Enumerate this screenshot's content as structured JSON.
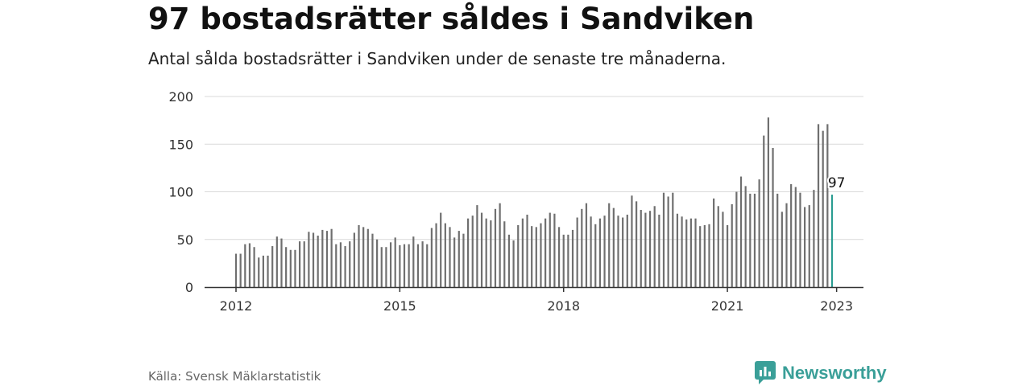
{
  "header": {
    "title": "97 bostadsrätter såldes i Sandviken",
    "subtitle": "Antal sålda bostadsrätter i Sandviken under de senaste tre månaderna."
  },
  "footer": {
    "source": "Källa: Svensk Mäklarstatistik",
    "brand": "Newsworthy"
  },
  "colors": {
    "bar": "#6f6f6f",
    "highlight": "#2a9d92",
    "grid": "#d9d9d9",
    "axis": "#333333",
    "brand": "#3a9f98"
  },
  "icons": {
    "brand": "newsworthy-logo-icon"
  },
  "chart_data": {
    "type": "bar",
    "title": "97 bostadsrätter såldes i Sandviken",
    "subtitle": "Antal sålda bostadsrätter i Sandviken under de senaste tre månaderna.",
    "xlabel": "",
    "ylabel": "",
    "ylim": [
      0,
      200
    ],
    "yticks": [
      0,
      50,
      100,
      150,
      200
    ],
    "xticks": [
      "2012",
      "2015",
      "2018",
      "2021",
      "2023"
    ],
    "xtick_months": [
      "2012-01",
      "2015-01",
      "2018-01",
      "2021-01",
      "2023-01"
    ],
    "grid": true,
    "start_month": "2012-01",
    "end_month": "2023-01",
    "values": [
      35,
      35,
      45,
      46,
      42,
      31,
      33,
      33,
      43,
      53,
      51,
      42,
      39,
      39,
      48,
      48,
      58,
      57,
      54,
      60,
      59,
      61,
      45,
      47,
      43,
      48,
      57,
      65,
      63,
      61,
      56,
      50,
      42,
      42,
      47,
      52,
      44,
      45,
      45,
      53,
      45,
      48,
      45,
      62,
      67,
      78,
      67,
      63,
      52,
      59,
      56,
      72,
      75,
      86,
      78,
      72,
      70,
      82,
      88,
      69,
      55,
      49,
      65,
      72,
      76,
      64,
      63,
      67,
      72,
      78,
      77,
      63,
      55,
      55,
      60,
      73,
      82,
      88,
      74,
      66,
      72,
      75,
      88,
      83,
      75,
      73,
      76,
      96,
      90,
      81,
      78,
      80,
      85,
      76,
      99,
      95,
      99,
      77,
      74,
      71,
      72,
      72,
      64,
      65,
      66,
      93,
      85,
      79,
      65,
      87,
      100,
      116,
      106,
      98,
      98,
      113,
      159,
      178,
      146,
      98,
      79,
      88,
      108,
      105,
      99,
      84,
      86,
      102,
      171,
      164,
      171,
      97
    ],
    "annotation": {
      "text": "97",
      "month": "2023-01",
      "value": 97
    }
  }
}
